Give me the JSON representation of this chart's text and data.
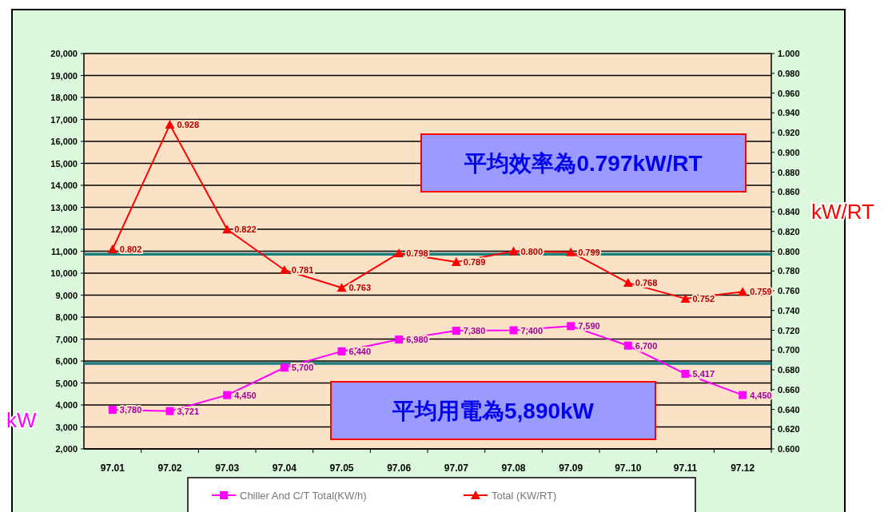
{
  "chart_data": {
    "type": "line",
    "categories": [
      "97.01",
      "97.02",
      "97.03",
      "97.04",
      "97.05",
      "97.06",
      "97.07",
      "97.08",
      "97.09",
      "97..10",
      "97.11",
      "97.12"
    ],
    "ylabel": "kW",
    "y2label": "kW/RT",
    "grid": "y",
    "legend": "bottom",
    "ylim": [
      2000,
      20000
    ],
    "yticks": [
      {
        "value": 2000,
        "label": "2,000"
      },
      {
        "value": 3000,
        "label": "3,000"
      },
      {
        "value": 4000,
        "label": "4,000"
      },
      {
        "value": 5000,
        "label": "5,000"
      },
      {
        "value": 6000,
        "label": "6,000"
      },
      {
        "value": 7000,
        "label": "7,000"
      },
      {
        "value": 8000,
        "label": "8,000"
      },
      {
        "value": 9000,
        "label": "9,000"
      },
      {
        "value": 10000,
        "label": "10,000"
      },
      {
        "value": 11000,
        "label": "11,000"
      },
      {
        "value": 12000,
        "label": "12,000"
      },
      {
        "value": 13000,
        "label": "13,000"
      },
      {
        "value": 14000,
        "label": "14,000"
      },
      {
        "value": 15000,
        "label": "15,000"
      },
      {
        "value": 16000,
        "label": "16,000"
      },
      {
        "value": 17000,
        "label": "17,000"
      },
      {
        "value": 18000,
        "label": "18,000"
      },
      {
        "value": 19000,
        "label": "19,000"
      },
      {
        "value": 20000,
        "label": "20,000"
      }
    ],
    "y2lim": [
      0.6,
      1.0
    ],
    "y2ticks": [
      {
        "value": 0.6,
        "label": "0.600"
      },
      {
        "value": 0.62,
        "label": "0.620"
      },
      {
        "value": 0.64,
        "label": "0.640"
      },
      {
        "value": 0.66,
        "label": "0.660"
      },
      {
        "value": 0.68,
        "label": "0.680"
      },
      {
        "value": 0.7,
        "label": "0.700"
      },
      {
        "value": 0.72,
        "label": "0.720"
      },
      {
        "value": 0.74,
        "label": "0.740"
      },
      {
        "value": 0.76,
        "label": "0.760"
      },
      {
        "value": 0.78,
        "label": "0.780"
      },
      {
        "value": 0.8,
        "label": "0.800"
      },
      {
        "value": 0.82,
        "label": "0.820"
      },
      {
        "value": 0.84,
        "label": "0.840"
      },
      {
        "value": 0.86,
        "label": "0.860"
      },
      {
        "value": 0.88,
        "label": "0.880"
      },
      {
        "value": 0.9,
        "label": "0.900"
      },
      {
        "value": 0.92,
        "label": "0.920"
      },
      {
        "value": 0.94,
        "label": "0.940"
      },
      {
        "value": 0.96,
        "label": "0.960"
      },
      {
        "value": 0.98,
        "label": "0.980"
      },
      {
        "value": 1.0,
        "label": "1.000"
      }
    ],
    "series": [
      {
        "name": "Chiller And C/T Total(KW/h)",
        "color": "#ff00ff",
        "marker": "square",
        "values": [
          3780,
          3721,
          4450,
          5700,
          6440,
          6980,
          7380,
          7400,
          7590,
          6700,
          5417,
          4450
        ],
        "value_labels": [
          "3,780",
          "3,721",
          "4,450",
          "5,700",
          "6,440",
          "6,980",
          "7,380",
          "7,400",
          "7,590",
          "6,700",
          "5,417",
          "4,450"
        ]
      },
      {
        "name": "Total (KW/RT)",
        "color": "#ff0000",
        "marker": "triangle",
        "axis": "y2",
        "values": [
          0.802,
          0.928,
          0.822,
          0.781,
          0.763,
          0.798,
          0.789,
          0.8,
          0.799,
          0.768,
          0.752,
          0.759
        ],
        "value_labels": [
          "0.802",
          "0.928",
          "0.822",
          "0.781",
          "0.763",
          "0.798",
          "0.789",
          "0.800",
          "0.799",
          "0.768",
          "0.752",
          "0.759"
        ]
      }
    ],
    "ref_lines": [
      {
        "axis": "y2",
        "value": 0.797,
        "color": "#1a7f7f"
      },
      {
        "axis": "y",
        "value": 5890,
        "color": "#1a7f7f"
      }
    ],
    "annotations": [
      "平均效率為0.797kW/RT",
      "平均用電為5,890kW"
    ]
  }
}
